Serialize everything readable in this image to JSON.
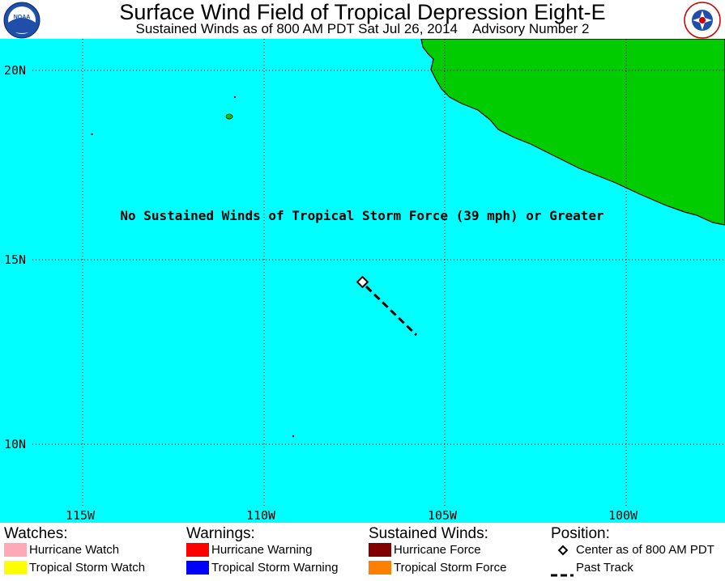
{
  "header": {
    "title": "Surface Wind Field of Tropical Depression Eight-E",
    "subtitle": "Sustained Winds as of 800 AM PDT Sat Jul 26, 2014    Advisory Number 2",
    "noaa_logo_text": "NOAA",
    "nws_logo_text": "NATIONAL WEATHER SERVICE"
  },
  "map": {
    "notice": "No Sustained Winds of Tropical Storm Force (39 mph) or Greater",
    "lat_labels": [
      "20N",
      "15N",
      "10N"
    ],
    "lon_labels": [
      "115W",
      "110W",
      "105W",
      "100W"
    ],
    "colors": {
      "ocean": "#00ffff",
      "land": "#00cc00",
      "grid": "#000000"
    }
  },
  "legend": {
    "watches": {
      "heading": "Watches:",
      "items": [
        {
          "label": "Hurricane Watch",
          "color": "#ffa8b8"
        },
        {
          "label": "Tropical Storm Watch",
          "color": "#ffff00"
        }
      ]
    },
    "warnings": {
      "heading": "Warnings:",
      "items": [
        {
          "label": "Hurricane Warning",
          "color": "#ff0000"
        },
        {
          "label": "Tropical Storm Warning",
          "color": "#0000ff"
        }
      ]
    },
    "winds": {
      "heading": "Sustained Winds:",
      "items": [
        {
          "label": "Hurricane Force",
          "color": "#800000"
        },
        {
          "label": "Tropical Storm Force",
          "color": "#ff8000"
        }
      ]
    },
    "position": {
      "heading": "Position:",
      "items": [
        {
          "label": "Center as of 800 AM PDT",
          "icon": "diamond-icon"
        },
        {
          "label": "Past Track",
          "icon": "dashed-line-icon"
        }
      ]
    }
  }
}
